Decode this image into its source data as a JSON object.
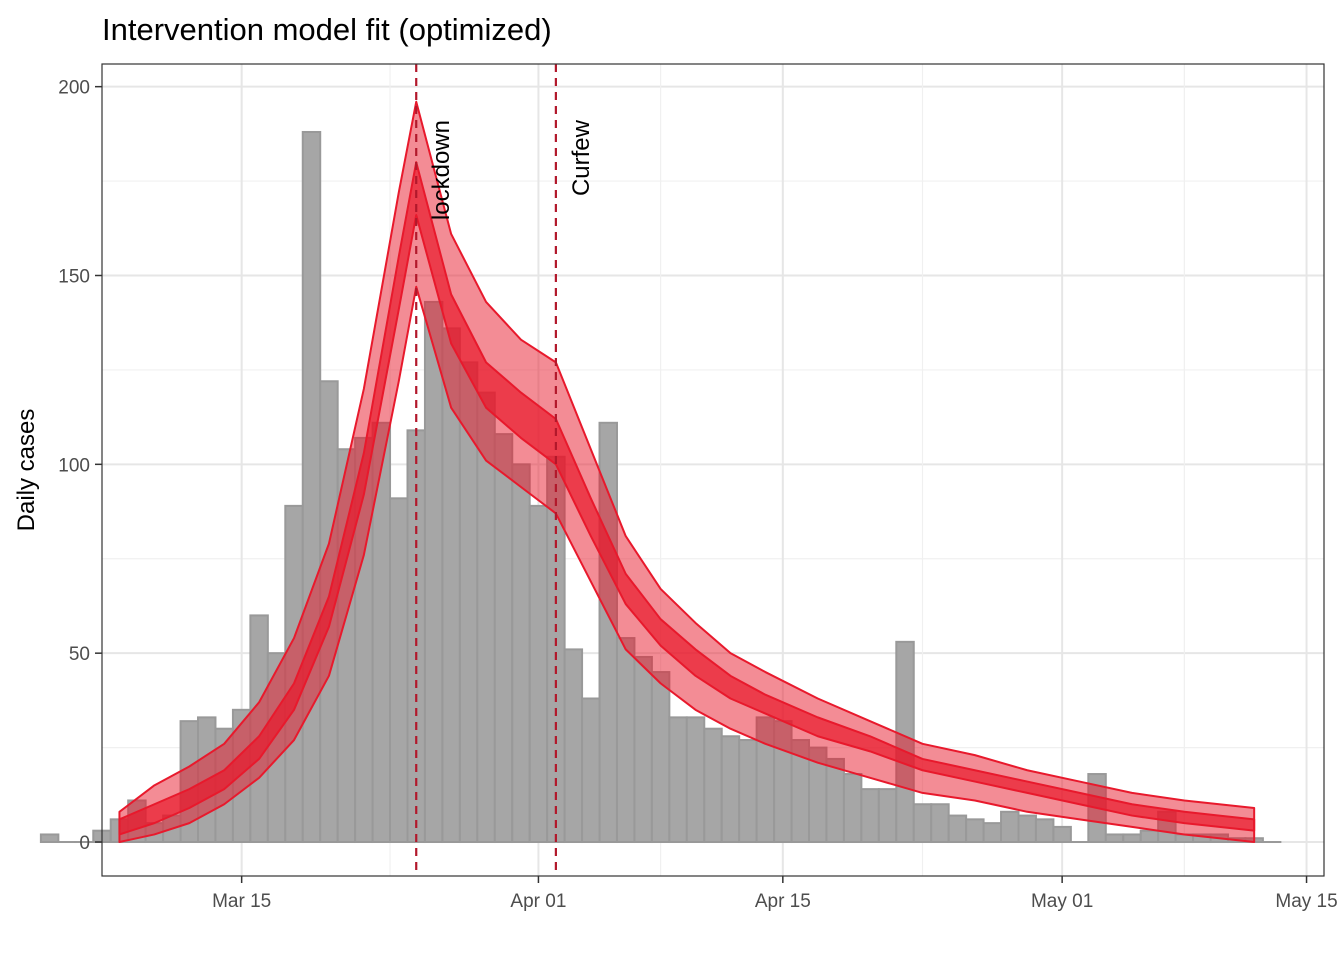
{
  "chart_data": {
    "type": "bar",
    "title": "Intervention model fit (optimized)",
    "xlabel": "",
    "ylabel": "Daily cases",
    "xlim": [
      "2020-03-07",
      "2020-05-16"
    ],
    "ylim": [
      -9,
      206
    ],
    "grid": true,
    "legend": "none",
    "x_ticks": [
      {
        "date": "2020-03-15",
        "label": "Mar 15"
      },
      {
        "date": "2020-04-01",
        "label": "Apr 01"
      },
      {
        "date": "2020-04-15",
        "label": "Apr 15"
      },
      {
        "date": "2020-05-01",
        "label": "May 01"
      },
      {
        "date": "2020-05-15",
        "label": "May 15"
      }
    ],
    "y_ticks": [
      0,
      50,
      100,
      150,
      200
    ],
    "bar_color": "#a6a6a6",
    "band_color": "#e8192c",
    "observed": {
      "dates": [
        "2020-03-04",
        "2020-03-05",
        "2020-03-06",
        "2020-03-07",
        "2020-03-08",
        "2020-03-09",
        "2020-03-10",
        "2020-03-11",
        "2020-03-12",
        "2020-03-13",
        "2020-03-14",
        "2020-03-15",
        "2020-03-16",
        "2020-03-17",
        "2020-03-18",
        "2020-03-19",
        "2020-03-20",
        "2020-03-21",
        "2020-03-22",
        "2020-03-23",
        "2020-03-24",
        "2020-03-25",
        "2020-03-26",
        "2020-03-27",
        "2020-03-28",
        "2020-03-29",
        "2020-03-30",
        "2020-03-31",
        "2020-04-01",
        "2020-04-02",
        "2020-04-03",
        "2020-04-04",
        "2020-04-05",
        "2020-04-06",
        "2020-04-07",
        "2020-04-08",
        "2020-04-09",
        "2020-04-10",
        "2020-04-11",
        "2020-04-12",
        "2020-04-13",
        "2020-04-14",
        "2020-04-15",
        "2020-04-16",
        "2020-04-17",
        "2020-04-18",
        "2020-04-19",
        "2020-04-20",
        "2020-04-21",
        "2020-04-22",
        "2020-04-23",
        "2020-04-24",
        "2020-04-25",
        "2020-04-26",
        "2020-04-27",
        "2020-04-28",
        "2020-04-29",
        "2020-04-30",
        "2020-05-01",
        "2020-05-02",
        "2020-05-03",
        "2020-05-04",
        "2020-05-05",
        "2020-05-06",
        "2020-05-07",
        "2020-05-08",
        "2020-05-09",
        "2020-05-10",
        "2020-05-11",
        "2020-05-12",
        "2020-05-13"
      ],
      "values": [
        2,
        0,
        0,
        3,
        6,
        11,
        5,
        7,
        32,
        33,
        30,
        35,
        60,
        50,
        89,
        188,
        122,
        104,
        107,
        111,
        91,
        109,
        143,
        136,
        127,
        119,
        108,
        100,
        89,
        102,
        51,
        38,
        111,
        54,
        49,
        45,
        33,
        33,
        30,
        28,
        27,
        33,
        32,
        27,
        25,
        22,
        18,
        14,
        14,
        53,
        10,
        10,
        7,
        6,
        5,
        8,
        7,
        6,
        4,
        0,
        18,
        2,
        2,
        3,
        8,
        2,
        2,
        2,
        1,
        1,
        0
      ]
    },
    "model": {
      "dates": [
        "2020-03-08",
        "2020-03-10",
        "2020-03-12",
        "2020-03-14",
        "2020-03-16",
        "2020-03-18",
        "2020-03-20",
        "2020-03-22",
        "2020-03-24",
        "2020-03-25",
        "2020-03-27",
        "2020-03-29",
        "2020-03-31",
        "2020-04-02",
        "2020-04-04",
        "2020-04-06",
        "2020-04-08",
        "2020-04-10",
        "2020-04-12",
        "2020-04-14",
        "2020-04-17",
        "2020-04-20",
        "2020-04-23",
        "2020-04-26",
        "2020-04-29",
        "2020-05-02",
        "2020-05-05",
        "2020-05-08",
        "2020-05-10",
        "2020-05-12"
      ],
      "outer_upper": [
        8,
        15,
        20,
        26,
        37,
        54,
        79,
        120,
        172,
        196,
        161,
        143,
        133,
        127,
        104,
        81,
        67,
        58,
        50,
        45,
        38,
        32,
        26,
        23,
        19,
        16,
        13,
        11,
        10,
        9
      ],
      "inner_upper": [
        6,
        10,
        14,
        19,
        28,
        42,
        65,
        103,
        155,
        180,
        145,
        127,
        119,
        112,
        91,
        71,
        59,
        51,
        44,
        39,
        33,
        28,
        22,
        19,
        16,
        13,
        10,
        8,
        7,
        6
      ],
      "inner_lower": [
        2,
        5,
        9,
        14,
        22,
        35,
        57,
        92,
        141,
        166,
        132,
        115,
        107,
        100,
        81,
        63,
        52,
        44,
        38,
        34,
        28,
        24,
        19,
        16,
        13,
        10,
        7,
        5,
        4,
        3
      ],
      "outer_lower": [
        0,
        2,
        5,
        10,
        17,
        27,
        44,
        76,
        122,
        147,
        115,
        101,
        94,
        87,
        69,
        51,
        42,
        35,
        30,
        26,
        21,
        17,
        13,
        11,
        8,
        6,
        4,
        2,
        1,
        0
      ]
    },
    "annotations": [
      {
        "label": "lockdown",
        "date": "2020-03-25"
      },
      {
        "label": "Curfew",
        "date": "2020-04-02"
      }
    ],
    "vline_color": "#b2182b"
  }
}
